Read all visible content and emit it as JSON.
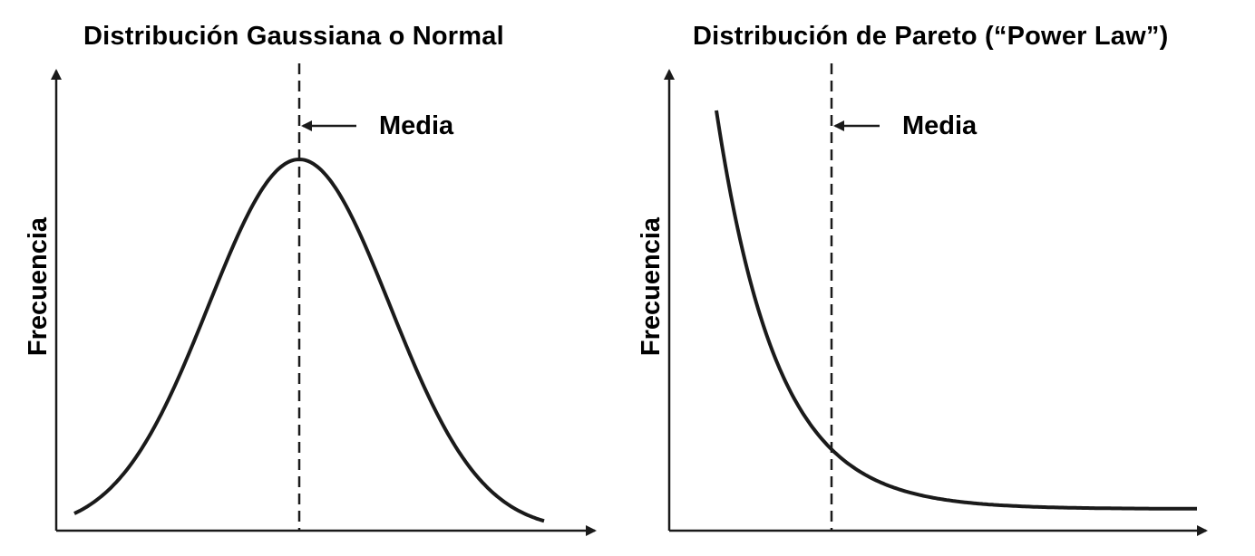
{
  "chart_data": [
    {
      "type": "line",
      "title": "Distribución  Gaussiana o Normal",
      "ylabel": "Frecuencia",
      "xlabel": "",
      "annotation": "Media",
      "distribution": "gaussian",
      "mean_marker": true,
      "grid": false
    },
    {
      "type": "line",
      "title": "Distribución  de Pareto (“Power Law”)",
      "ylabel": "Frecuencia",
      "xlabel": "",
      "annotation": "Media",
      "distribution": "power-law",
      "mean_marker": true,
      "grid": false
    }
  ],
  "colors": {
    "line": "#1a1a1a",
    "background": "#ffffff"
  }
}
